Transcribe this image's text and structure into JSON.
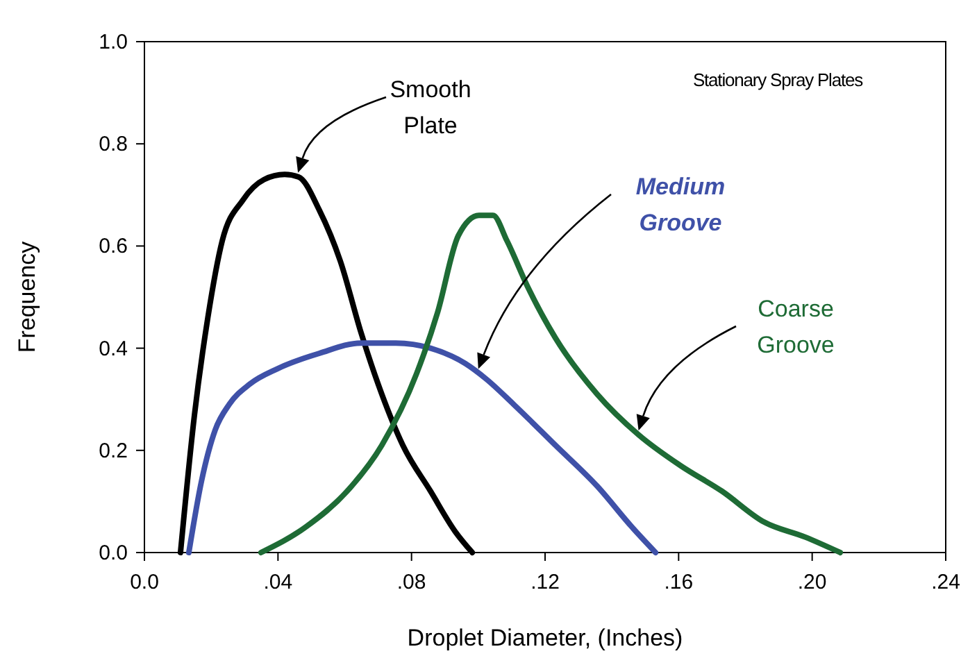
{
  "chart_data": {
    "type": "line",
    "xlabel": "Droplet Diameter, (Inches)",
    "ylabel": "Frequency",
    "annotations": [
      "Stationary Spray Plates"
    ],
    "xlim": [
      0,
      0.24
    ],
    "xticks": [
      {
        "value": 0,
        "label": "0.0"
      },
      {
        "value": 0.04,
        "label": ".04"
      },
      {
        "value": 0.08,
        "label": ".08"
      },
      {
        "value": 0.12,
        "label": ".12"
      },
      {
        "value": 0.16,
        "label": ".16"
      },
      {
        "value": 0.2,
        "label": ".20"
      },
      {
        "value": 0.24,
        "label": ".24"
      }
    ],
    "ylim": [
      0,
      1
    ],
    "yticks": [
      {
        "value": 0,
        "label": "0.0"
      },
      {
        "value": 0.2,
        "label": "0.2"
      },
      {
        "value": 0.4,
        "label": "0.4"
      },
      {
        "value": 0.6,
        "label": "0.6"
      },
      {
        "value": 0.8,
        "label": "0.8"
      },
      {
        "value": 1,
        "label": "1.0"
      }
    ],
    "grid": false,
    "line_style": "solid",
    "series": [
      {
        "name": "Smooth Plate",
        "color": "#000000",
        "x": [
          0.0108,
          0.015,
          0.019,
          0.0233,
          0.0295,
          0.0358,
          0.042,
          0.0462,
          0.0524,
          0.0587,
          0.0649,
          0.0711,
          0.0774,
          0.0857,
          0.0932,
          0.0982
        ],
        "values": [
          0,
          0.27,
          0.46,
          0.61,
          0.69,
          0.73,
          0.74,
          0.735,
          0.67,
          0.57,
          0.43,
          0.31,
          0.21,
          0.12,
          0.04,
          0
        ]
      },
      {
        "name": "Medium Groove",
        "color": "#3f51a8",
        "x": [
          0.0133,
          0.0171,
          0.0212,
          0.0254,
          0.0316,
          0.0399,
          0.0524,
          0.0649,
          0.0753,
          0.0857,
          0.0961,
          0.1023,
          0.1106,
          0.1231,
          0.1356,
          0.146,
          0.1531
        ],
        "values": [
          0,
          0.14,
          0.24,
          0.29,
          0.33,
          0.36,
          0.39,
          0.41,
          0.41,
          0.4,
          0.37,
          0.34,
          0.29,
          0.21,
          0.13,
          0.05,
          0
        ]
      },
      {
        "name": "Coarse Groove",
        "color": "#1e6b35",
        "x": [
          0.0349,
          0.0483,
          0.0607,
          0.0711,
          0.0815,
          0.0878,
          0.094,
          0.1002,
          0.1044,
          0.1086,
          0.1148,
          0.1231,
          0.1356,
          0.1481,
          0.1606,
          0.173,
          0.1855,
          0.198,
          0.2084
        ],
        "values": [
          0,
          0.05,
          0.12,
          0.21,
          0.35,
          0.47,
          0.62,
          0.66,
          0.66,
          0.61,
          0.52,
          0.42,
          0.31,
          0.23,
          0.17,
          0.12,
          0.06,
          0.03,
          0
        ]
      }
    ]
  }
}
